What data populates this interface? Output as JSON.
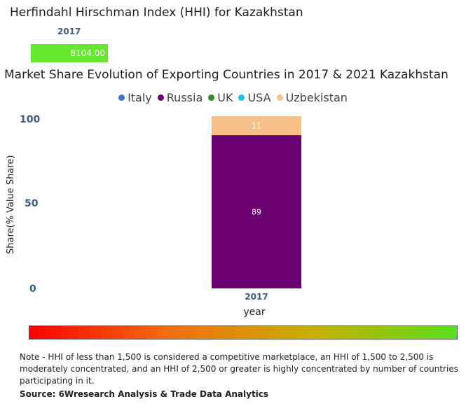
{
  "hhi": {
    "title": "Herfindahl Hirschman Index (HHI) for Kazakhstan",
    "year": "2017",
    "value_label": "8104.00",
    "value": 8104.0,
    "bar_color": "#66e62e"
  },
  "chart_data": {
    "type": "bar",
    "stacked": true,
    "title": "Market Share Evolution of Exporting Countries in 2017 & 2021 Kazakhstan",
    "xlabel": "year",
    "ylabel": "Share(% Value Share)",
    "categories": [
      "2017"
    ],
    "ylim": [
      0,
      100
    ],
    "yticks": [
      "0",
      "50",
      "100"
    ],
    "legend": [
      {
        "name": "Italy",
        "color": "#4a6fd0"
      },
      {
        "name": "Russia",
        "color": "#6a006f"
      },
      {
        "name": "UK",
        "color": "#2e8b2e"
      },
      {
        "name": "USA",
        "color": "#22c0e0"
      },
      {
        "name": "Uzbekistan",
        "color": "#f7c08a"
      }
    ],
    "series": [
      {
        "name": "Russia",
        "values": [
          89
        ],
        "labels": [
          "89"
        ],
        "color": "#6a006f"
      },
      {
        "name": "Uzbekistan",
        "values": [
          11
        ],
        "labels": [
          "11"
        ],
        "color": "#f7c08a"
      }
    ]
  },
  "note": "Note - HHI of less than 1,500 is considered a competitive marketplace, an HHI of 1,500 to 2,500 is moderately concentrated, and an HHI of 2,500 or greater is highly concentrated by number of countries participating in it.",
  "source": "Source: 6Wresearch Analysis & Trade Data Analytics"
}
